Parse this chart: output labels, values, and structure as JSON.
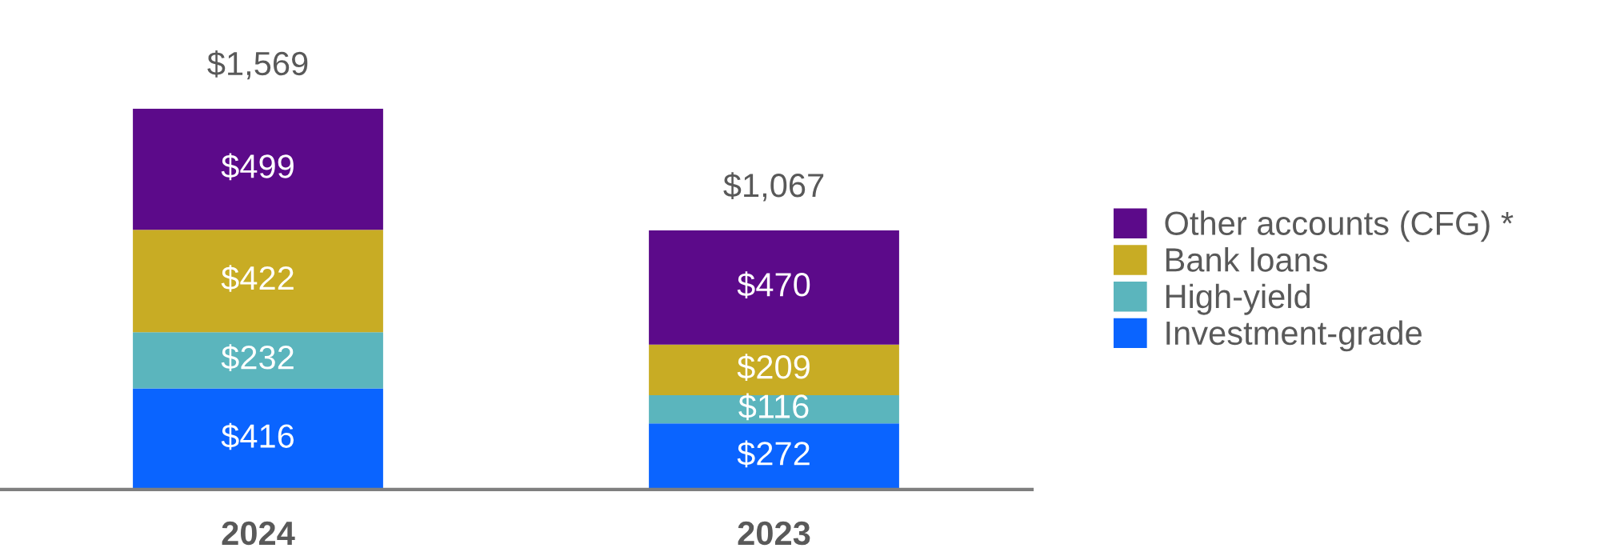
{
  "chart_data": {
    "type": "bar",
    "stacked": true,
    "categories": [
      "2024",
      "2023"
    ],
    "series": [
      {
        "name": "Investment-grade",
        "color": "#0a64ff",
        "values": [
          416,
          272
        ],
        "value_labels": [
          "$416",
          "$272"
        ]
      },
      {
        "name": "High-yield",
        "color": "#5bb5bd",
        "values": [
          232,
          116
        ],
        "value_labels": [
          "$232",
          "$116"
        ]
      },
      {
        "name": "Bank loans",
        "color": "#c8ac24",
        "values": [
          422,
          209
        ],
        "value_labels": [
          "$422",
          "$209"
        ]
      },
      {
        "name": "Other accounts (CFG) *",
        "color": "#5c0a8a",
        "values": [
          499,
          470
        ],
        "value_labels": [
          "$499",
          "$470"
        ]
      }
    ],
    "totals": [
      "$1,569",
      "$1,067"
    ],
    "legend": "right",
    "grid": false
  }
}
